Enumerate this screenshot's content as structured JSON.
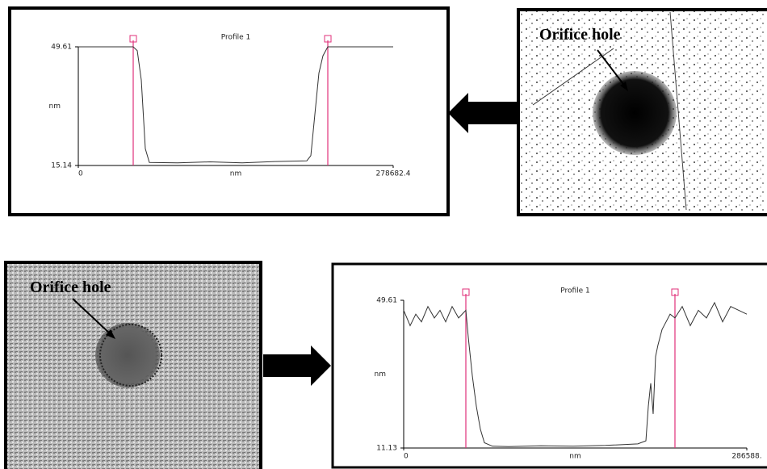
{
  "chart_data": [
    {
      "type": "line",
      "title": "Profile 1",
      "x_label": "nm",
      "y_label": "nm",
      "xlim": [
        0,
        278682.4
      ],
      "xticks": [
        0,
        278682.4
      ],
      "ylim": [
        15.14,
        49.61
      ],
      "yticks": [
        49.61,
        15.14
      ],
      "cursors": [
        48590,
        220811
      ],
      "cursor_color": "#e0307a",
      "x": [
        0,
        48590,
        52165,
        55738,
        59312,
        62885,
        87896,
        116480,
        145064,
        173648,
        202232,
        205805,
        209378,
        212951,
        216524,
        220811,
        278682.4
      ],
      "series": [
        {
          "color": "#333333",
          "values": [
            49.61,
            49.61,
            48.5,
            40,
            20,
            16,
            15.9,
            16.2,
            15.9,
            16.3,
            16.5,
            18,
            30,
            42,
            47,
            49.61,
            49.61
          ]
        }
      ]
    },
    {
      "type": "line",
      "title": "Profile 1",
      "x_label": "nm",
      "y_label": "nm",
      "xlim": [
        0,
        286588
      ],
      "xticks": [
        0,
        {
          "value": 286588,
          "label": "286588."
        }
      ],
      "ylim": [
        11.13,
        49.61
      ],
      "yticks": [
        49.61,
        11.13
      ],
      "cursors": [
        51921,
        226565
      ],
      "cursor_color": "#e0307a",
      "x": [
        0,
        5394,
        10115,
        14835,
        20229,
        25623,
        30344,
        35064,
        40458,
        45852,
        51921,
        53944,
        57316,
        60687,
        64059,
        67430,
        74173,
        87659,
        114631,
        141603,
        168575,
        195547,
        202290,
        204313,
        206336,
        208359,
        210382,
        212405,
        215776,
        219148,
        222519,
        226565,
        232634,
        239377,
        246120,
        252863,
        259606,
        266349,
        273092,
        279835,
        286588
      ],
      "series": [
        {
          "color": "#333333",
          "values": [
            47,
            43,
            46,
            44,
            48,
            45,
            47,
            44,
            48,
            45,
            47,
            40,
            30,
            22,
            16,
            12.5,
            11.6,
            11.5,
            11.7,
            11.6,
            11.8,
            12.2,
            13,
            22,
            28,
            20,
            35,
            38,
            42,
            44,
            46,
            45,
            48,
            43,
            47,
            45,
            49,
            44,
            48,
            47,
            46
          ]
        }
      ]
    }
  ],
  "annotations": [
    "Orifice hole",
    "Orifice hole"
  ]
}
